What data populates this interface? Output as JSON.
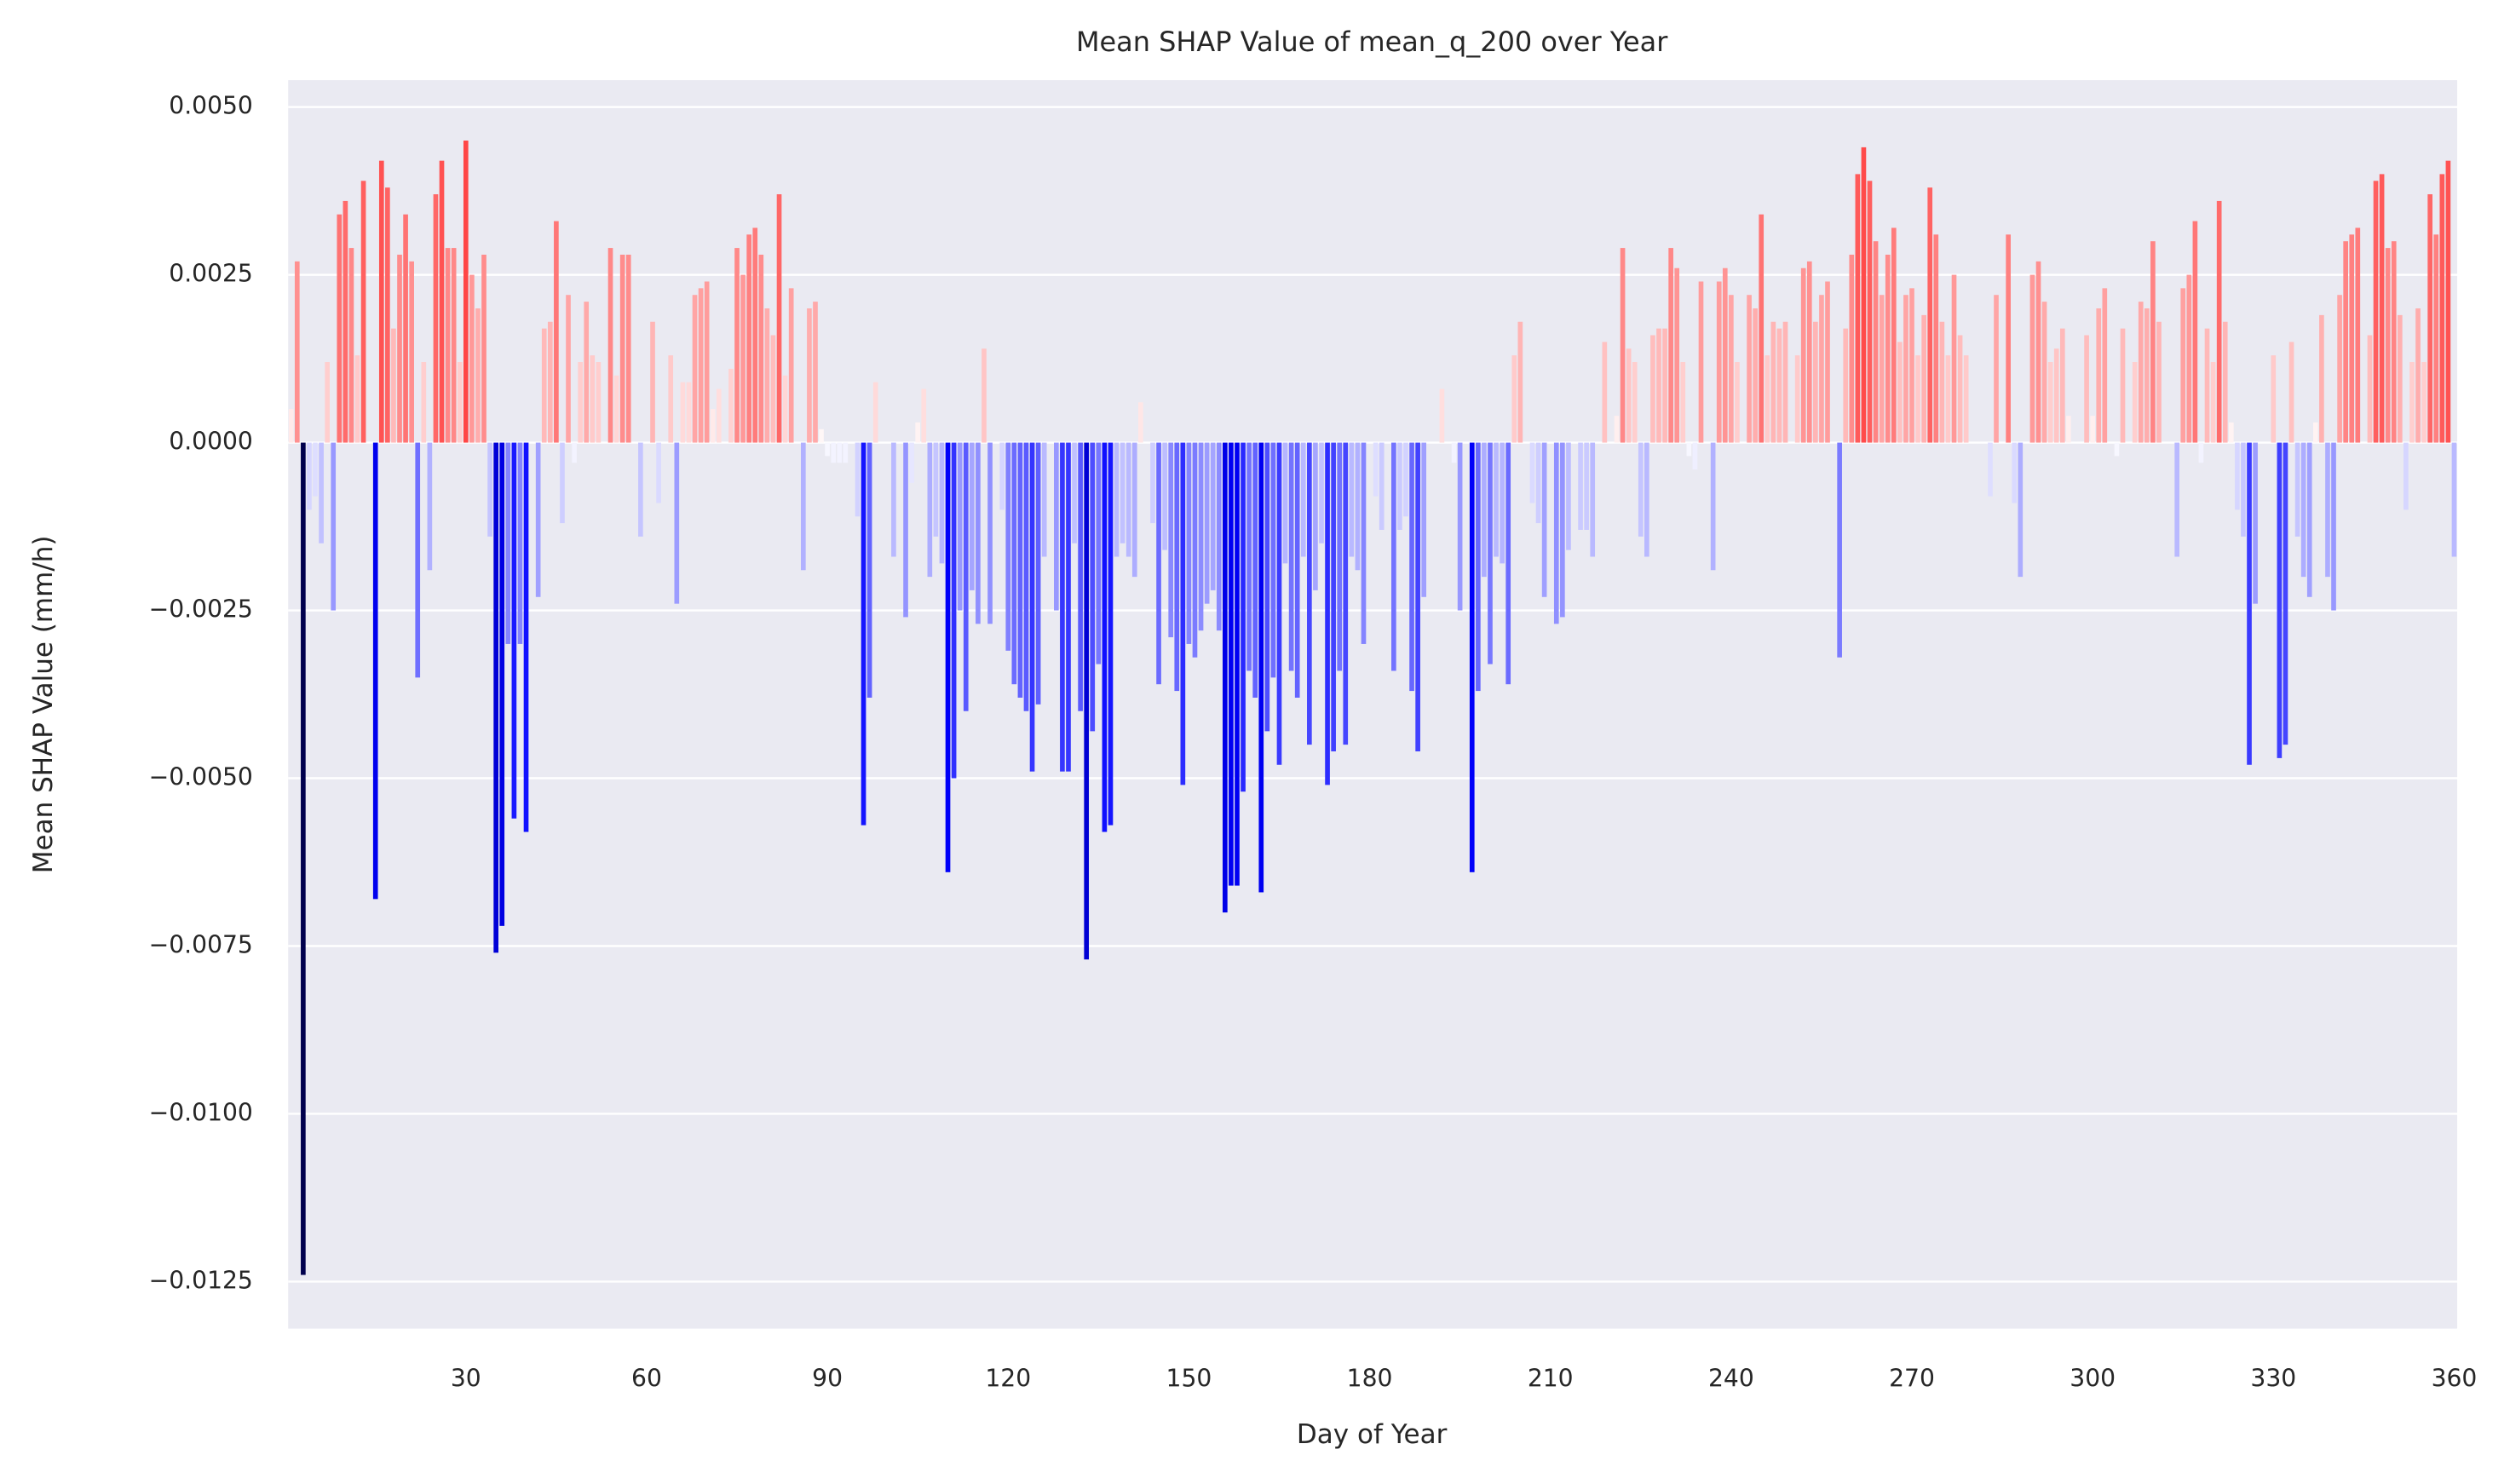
{
  "chart_data": {
    "type": "bar",
    "title": "Mean SHAP Value of mean_q_200 over Year",
    "xlabel": "Day of Year",
    "ylabel": "Mean SHAP Value (mm/h)",
    "colormap": "seismic",
    "grid": true,
    "xlim": [
      0.5,
      360.5
    ],
    "xticks": [
      30,
      60,
      90,
      120,
      150,
      180,
      210,
      240,
      270,
      300,
      330,
      360
    ],
    "ylim": [
      -0.0132,
      0.0054
    ],
    "yticks": [
      {
        "value": 0.005,
        "label": "0.0050"
      },
      {
        "value": 0.0025,
        "label": "0.0025"
      },
      {
        "value": 0,
        "label": "0.0000"
      },
      {
        "value": -0.0025,
        "label": "−0.0025"
      },
      {
        "value": -0.005,
        "label": "−0.0050"
      },
      {
        "value": -0.0075,
        "label": "−0.0075"
      },
      {
        "value": -0.01,
        "label": "−0.0100"
      },
      {
        "value": -0.0125,
        "label": "−0.0125"
      }
    ],
    "x": [
      1,
      2,
      3,
      4,
      5,
      6,
      7,
      8,
      9,
      10,
      11,
      12,
      13,
      14,
      15,
      16,
      17,
      18,
      19,
      20,
      21,
      22,
      23,
      24,
      25,
      26,
      27,
      28,
      29,
      30,
      31,
      32,
      33,
      34,
      35,
      36,
      37,
      38,
      39,
      40,
      41,
      42,
      43,
      44,
      45,
      46,
      47,
      48,
      49,
      50,
      51,
      52,
      53,
      54,
      55,
      56,
      57,
      58,
      59,
      60,
      61,
      62,
      63,
      64,
      65,
      66,
      67,
      68,
      69,
      70,
      71,
      72,
      73,
      74,
      75,
      76,
      77,
      78,
      79,
      80,
      81,
      82,
      83,
      84,
      85,
      86,
      87,
      88,
      89,
      90,
      91,
      92,
      93,
      94,
      95,
      96,
      97,
      98,
      99,
      100,
      101,
      102,
      103,
      104,
      105,
      106,
      107,
      108,
      109,
      110,
      111,
      112,
      113,
      114,
      115,
      116,
      117,
      118,
      119,
      120,
      121,
      122,
      123,
      124,
      125,
      126,
      127,
      128,
      129,
      130,
      131,
      132,
      133,
      134,
      135,
      136,
      137,
      138,
      139,
      140,
      141,
      142,
      143,
      144,
      145,
      146,
      147,
      148,
      149,
      150,
      151,
      152,
      153,
      154,
      155,
      156,
      157,
      158,
      159,
      160,
      161,
      162,
      163,
      164,
      165,
      166,
      167,
      168,
      169,
      170,
      171,
      172,
      173,
      174,
      175,
      176,
      177,
      178,
      179,
      180,
      181,
      182,
      183,
      184,
      185,
      186,
      187,
      188,
      189,
      190,
      191,
      192,
      193,
      194,
      195,
      196,
      197,
      198,
      199,
      200,
      201,
      202,
      203,
      204,
      205,
      206,
      207,
      208,
      209,
      210,
      211,
      212,
      213,
      214,
      215,
      216,
      217,
      218,
      219,
      220,
      221,
      222,
      223,
      224,
      225,
      226,
      227,
      228,
      229,
      230,
      231,
      232,
      233,
      234,
      235,
      236,
      237,
      238,
      239,
      240,
      241,
      242,
      243,
      244,
      245,
      246,
      247,
      248,
      249,
      250,
      251,
      252,
      253,
      254,
      255,
      256,
      257,
      258,
      259,
      260,
      261,
      262,
      263,
      264,
      265,
      266,
      267,
      268,
      269,
      270,
      271,
      272,
      273,
      274,
      275,
      276,
      277,
      278,
      279,
      280,
      281,
      282,
      283,
      284,
      285,
      286,
      287,
      288,
      289,
      290,
      291,
      292,
      293,
      294,
      295,
      296,
      297,
      298,
      299,
      300,
      301,
      302,
      303,
      304,
      305,
      306,
      307,
      308,
      309,
      310,
      311,
      312,
      313,
      314,
      315,
      316,
      317,
      318,
      319,
      320,
      321,
      322,
      323,
      324,
      325,
      326,
      327,
      328,
      329,
      330,
      331,
      332,
      333,
      334,
      335,
      336,
      337,
      338,
      339,
      340,
      341,
      342,
      343,
      344,
      345,
      346,
      347,
      348,
      349,
      350,
      351,
      352,
      353,
      354,
      355,
      356,
      357,
      358,
      359,
      360
    ],
    "values": [
      0.0005,
      0.0027,
      -0.0124,
      -0.001,
      -0.0008,
      -0.0015,
      0.0012,
      -0.0025,
      0.0034,
      0.0036,
      0.0029,
      0.0013,
      0.0039,
      0,
      -0.0068,
      0.0042,
      0.0038,
      0.0017,
      0.0028,
      0.0034,
      0.0027,
      -0.0035,
      0.0012,
      -0.0019,
      0.0037,
      0.0042,
      0.0029,
      0.0029,
      0.0012,
      0.0045,
      0.0025,
      0.002,
      0.0028,
      -0.0014,
      -0.0076,
      -0.0072,
      -0.003,
      -0.0056,
      -0.003,
      -0.0058,
      0,
      -0.0023,
      0.0017,
      0.0018,
      0.0033,
      -0.0012,
      0.0022,
      -0.0003,
      0.0012,
      0.0021,
      0.0013,
      0.0012,
      0,
      0.0029,
      0.001,
      0.0028,
      0.0028,
      0,
      -0.0014,
      0,
      0.0018,
      -0.0009,
      0,
      0.0013,
      -0.0024,
      0.0009,
      0.0009,
      0.0022,
      0.0023,
      0.0024,
      0.0005,
      0.0008,
      0,
      0.0011,
      0.0029,
      0.0025,
      0.0031,
      0.0032,
      0.0028,
      0.002,
      0.0016,
      0.0037,
      0.001,
      0.0023,
      0,
      -0.0019,
      0.002,
      0.0021,
      0.0002,
      -0.0002,
      -0.0003,
      -0.0003,
      -0.0003,
      0,
      -0.0011,
      -0.0057,
      -0.0038,
      0.0009,
      0,
      0,
      -0.0017,
      0,
      -0.0026,
      -0.0006,
      0.0003,
      0.0008,
      -0.002,
      -0.0014,
      -0.0018,
      -0.0064,
      -0.005,
      -0.0025,
      -0.004,
      -0.0022,
      -0.0027,
      0.0014,
      -0.0027,
      0,
      -0.001,
      -0.0031,
      -0.0036,
      -0.0038,
      -0.004,
      -0.0049,
      -0.0039,
      -0.0017,
      0,
      -0.0025,
      -0.0049,
      -0.0049,
      -0.0015,
      -0.004,
      -0.0077,
      -0.0043,
      -0.0033,
      -0.0058,
      -0.0057,
      -0.0017,
      -0.0015,
      -0.0017,
      -0.002,
      0.0006,
      0,
      -0.0012,
      -0.0036,
      -0.0016,
      -0.0029,
      -0.0037,
      -0.0051,
      -0.003,
      -0.0032,
      -0.0028,
      -0.0024,
      -0.0022,
      -0.0028,
      -0.007,
      -0.0066,
      -0.0066,
      -0.0052,
      -0.0034,
      -0.0038,
      -0.0067,
      -0.0043,
      -0.0035,
      -0.0048,
      -0.0018,
      -0.0034,
      -0.0038,
      -0.0017,
      -0.0045,
      -0.0022,
      -0.0015,
      -0.0051,
      -0.0046,
      -0.0034,
      -0.0045,
      -0.0017,
      -0.0019,
      -0.003,
      0,
      -0.0008,
      -0.0013,
      0,
      -0.0034,
      -0.0013,
      -0.0011,
      -0.0037,
      -0.0046,
      -0.0023,
      0,
      0,
      0.0008,
      0,
      -0.0003,
      -0.0025,
      0,
      -0.0064,
      -0.0037,
      -0.002,
      -0.0033,
      -0.0017,
      -0.0018,
      -0.0036,
      0.0013,
      0.0018,
      0,
      -0.0009,
      -0.0012,
      -0.0023,
      0,
      -0.0027,
      -0.0026,
      -0.0016,
      0,
      -0.0013,
      -0.0013,
      -0.0017,
      0,
      0.0015,
      0,
      0.0004,
      0.0029,
      0.0014,
      0.0012,
      -0.0014,
      -0.0017,
      0.0016,
      0.0017,
      0.0017,
      0.0029,
      0.0026,
      0.0012,
      -0.0002,
      -0.0004,
      0.0024,
      0,
      -0.0019,
      0.0024,
      0.0026,
      0.0022,
      0.0012,
      0,
      0.0022,
      0.002,
      0.0034,
      0.0013,
      0.0018,
      0.0017,
      0.0018,
      0,
      0.0013,
      0.0026,
      0.0027,
      0.0018,
      0.0022,
      0.0024,
      0,
      -0.0032,
      0.0017,
      0.0028,
      0.004,
      0.0044,
      0.0039,
      0.003,
      0.0022,
      0.0028,
      0.0032,
      0.0015,
      0.0022,
      0.0023,
      0.0013,
      0.0019,
      0.0038,
      0.0031,
      0.0018,
      0.0013,
      0.0025,
      0.0016,
      0.0013,
      0,
      0,
      0,
      -0.0008,
      0.0022,
      0,
      0.0031,
      -0.0009,
      -0.002,
      0,
      0.0025,
      0.0027,
      0.0021,
      0.0012,
      0.0014,
      0.0017,
      0.0004,
      0,
      0,
      0.0016,
      0.0004,
      0.002,
      0.0023,
      0,
      -0.0002,
      0.0017,
      0,
      0.0012,
      0.0021,
      0.002,
      0.003,
      0.0018,
      0,
      0,
      -0.0017,
      0.0023,
      0.0025,
      0.0033,
      -0.0003,
      0.0017,
      0.0012,
      0.0036,
      0.0018,
      0.0003,
      -0.001,
      -0.0014,
      -0.0048,
      -0.0024,
      0,
      0,
      0.0013,
      -0.0047,
      -0.0045,
      0.0015,
      -0.0014,
      -0.002,
      -0.0023,
      0.0003,
      0.0019,
      -0.002,
      -0.0025,
      0.0022,
      0.003,
      0.0031,
      0.0032,
      0,
      0.0016,
      0.0039,
      0.004,
      0.0029,
      0.003,
      0.0019,
      -0.001,
      0.0012,
      0.002,
      0.0012,
      0.0037,
      0.0031,
      0.004,
      0.0042,
      -0.0017
    ]
  }
}
